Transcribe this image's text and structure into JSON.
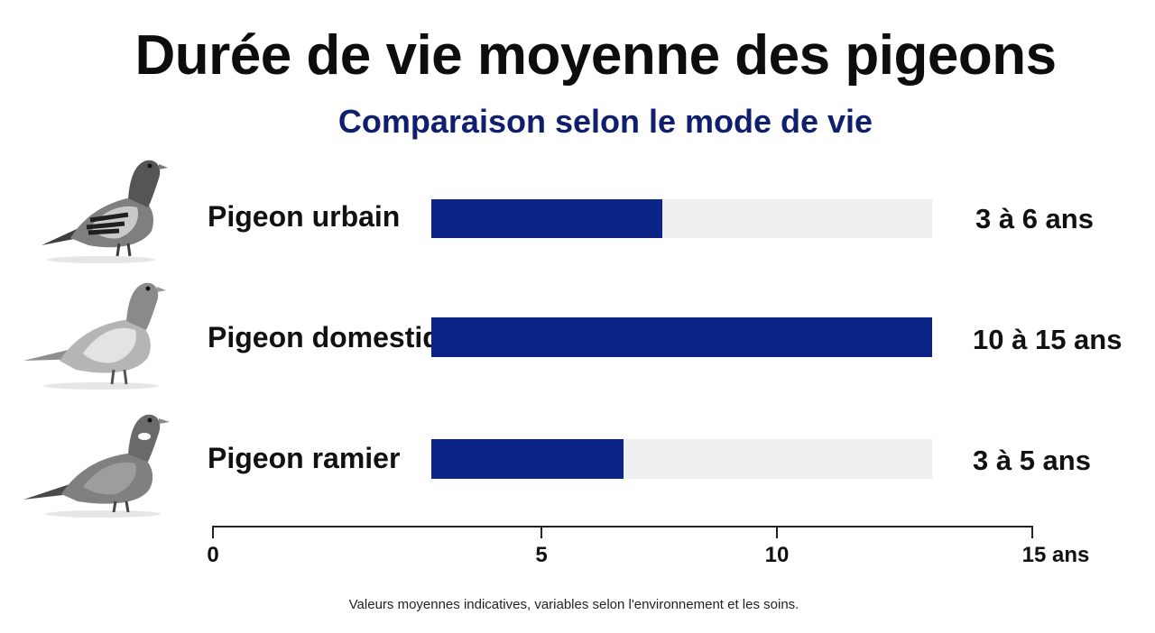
{
  "title": "Durée de vie moyenne des pigeons",
  "subtitle": "Comparaison selon le mode de vie",
  "footnote": "Valeurs moyennes indicatives, variables selon l'environnement et les soins.",
  "colors": {
    "bar": "#0b2387",
    "track": "#efefef",
    "subtitle": "#0f1f6e"
  },
  "rows": [
    {
      "label": "Pigeon urbain",
      "value_text": "3 à 6 ans",
      "icon": "pigeon-urbain-icon"
    },
    {
      "label": "Pigeon domestique",
      "value_text": "10 à 15 ans",
      "icon": "pigeon-domestique-icon"
    },
    {
      "label": "Pigeon ramier",
      "value_text": "3 à 5 ans",
      "icon": "pigeon-ramier-icon"
    }
  ],
  "chart_data": {
    "type": "bar",
    "orientation": "horizontal",
    "title": "Durée de vie moyenne des pigeons",
    "subtitle": "Comparaison selon le mode de vie",
    "categories": [
      "Pigeon urbain",
      "Pigeon domestique",
      "Pigeon ramier"
    ],
    "track_max": 13,
    "series": [
      {
        "values": [
          6,
          15,
          5
        ]
      }
    ],
    "value_labels": [
      "3 à 6 ans",
      "10 à 15 ans",
      "3 à 5 ans"
    ],
    "xlim": [
      0,
      15
    ],
    "x_ticks": [
      "0",
      "5",
      "10",
      "15 ans"
    ],
    "grid": false,
    "legend": "none"
  }
}
